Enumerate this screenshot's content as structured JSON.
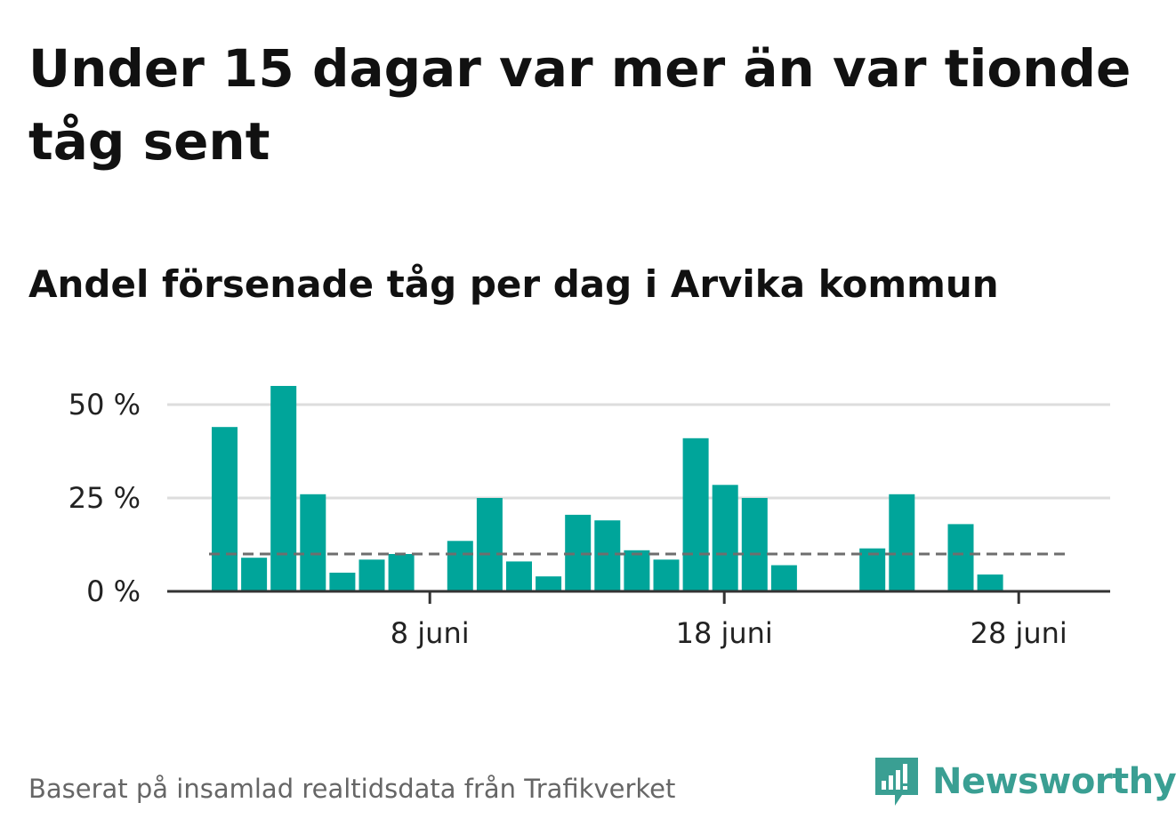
{
  "title": "Under 15 dagar var mer än var tionde tåg sent",
  "subtitle": "Andel försenade tåg per dag i Arvika kommun",
  "footer": "Baserat på insamlad realtidsdata från Trafikverket",
  "logo": {
    "text": "Newsworthy",
    "icon": "bar-chart-bubble-icon",
    "color": "#3a9f93"
  },
  "chart_data": {
    "type": "bar",
    "title": "Andel försenade tåg per dag i Arvika kommun",
    "x_unit": "day in June",
    "days": [
      1,
      2,
      3,
      4,
      5,
      6,
      7,
      8,
      9,
      10,
      11,
      12,
      13,
      14,
      15,
      16,
      17,
      18,
      19,
      20,
      21,
      22,
      23,
      24,
      25,
      26,
      27,
      28,
      29
    ],
    "values": [
      44,
      9,
      55,
      26,
      5,
      8.5,
      10,
      0,
      13.5,
      25,
      8,
      4,
      20.5,
      19,
      11,
      8.5,
      41,
      28.5,
      25,
      7,
      0,
      0,
      11.5,
      26,
      0,
      18,
      4.5,
      0,
      0
    ],
    "xticks": [
      {
        "day": 8,
        "label": "8 juni"
      },
      {
        "day": 18,
        "label": "18 juni"
      },
      {
        "day": 28,
        "label": "28 juni"
      }
    ],
    "yticks": [
      {
        "value": 0,
        "label": "0 %"
      },
      {
        "value": 25,
        "label": "25 %"
      },
      {
        "value": 50,
        "label": "50 %"
      }
    ],
    "ylim": [
      0,
      55
    ],
    "reference_line": {
      "value": 10
    },
    "grid": true,
    "colors": {
      "bar": "#00a59a",
      "grid": "#dddddd",
      "axis": "#333333",
      "reference": "#6e6e6e"
    }
  }
}
